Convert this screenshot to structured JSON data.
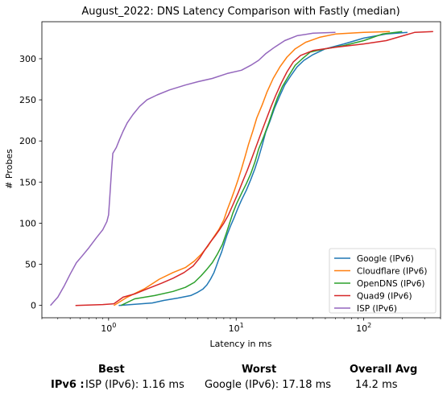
{
  "chart_data": {
    "type": "line",
    "title": "August_2022: DNS Latency Comparison with Fastly (median)",
    "xlabel": "Latency in ms",
    "ylabel": "# Probes",
    "xscale": "log",
    "xlim": [
      0.3,
      400
    ],
    "ylim": [
      -15,
      345
    ],
    "xticks": [
      1,
      10,
      100
    ],
    "xtick_labels": [
      "10^0",
      "10^1",
      "10^2"
    ],
    "yticks": [
      0,
      50,
      100,
      150,
      200,
      250,
      300
    ],
    "grid": false,
    "legend_position": "lower right",
    "series": [
      {
        "name": "Google (IPv6)",
        "color": "#1f77b4",
        "points": [
          [
            1.2,
            0
          ],
          [
            2.2,
            3
          ],
          [
            2.7,
            6
          ],
          [
            3.5,
            9
          ],
          [
            4.4,
            12
          ],
          [
            5.0,
            16
          ],
          [
            5.5,
            20
          ],
          [
            5.9,
            25
          ],
          [
            6.3,
            32
          ],
          [
            6.7,
            40
          ],
          [
            7.0,
            48
          ],
          [
            7.3,
            56
          ],
          [
            7.7,
            65
          ],
          [
            8.1,
            76
          ],
          [
            8.5,
            86
          ],
          [
            9.0,
            96
          ],
          [
            9.6,
            106
          ],
          [
            10.3,
            118
          ],
          [
            11,
            128
          ],
          [
            12,
            140
          ],
          [
            13,
            153
          ],
          [
            14,
            166
          ],
          [
            15,
            180
          ],
          [
            16,
            195
          ],
          [
            17,
            210
          ],
          [
            18.5,
            225
          ],
          [
            20,
            240
          ],
          [
            22,
            255
          ],
          [
            24,
            268
          ],
          [
            27,
            280
          ],
          [
            30,
            290
          ],
          [
            34,
            298
          ],
          [
            40,
            305
          ],
          [
            50,
            312
          ],
          [
            70,
            318
          ],
          [
            100,
            325
          ],
          [
            150,
            330
          ],
          [
            220,
            332
          ]
        ]
      },
      {
        "name": "Cloudflare (IPv6)",
        "color": "#ff7f0e",
        "points": [
          [
            1.1,
            0
          ],
          [
            1.4,
            10
          ],
          [
            1.9,
            20
          ],
          [
            2.5,
            32
          ],
          [
            3.2,
            40
          ],
          [
            4.0,
            46
          ],
          [
            4.7,
            54
          ],
          [
            5.3,
            62
          ],
          [
            6.0,
            72
          ],
          [
            6.6,
            82
          ],
          [
            7.3,
            92
          ],
          [
            8.0,
            104
          ],
          [
            8.5,
            116
          ],
          [
            9.1,
            128
          ],
          [
            9.7,
            140
          ],
          [
            10.3,
            152
          ],
          [
            11,
            166
          ],
          [
            11.7,
            180
          ],
          [
            12.5,
            196
          ],
          [
            13.5,
            212
          ],
          [
            14.5,
            228
          ],
          [
            16,
            244
          ],
          [
            17.5,
            260
          ],
          [
            19.5,
            276
          ],
          [
            22,
            290
          ],
          [
            25,
            302
          ],
          [
            29,
            312
          ],
          [
            35,
            320
          ],
          [
            45,
            326
          ],
          [
            60,
            330
          ],
          [
            100,
            332
          ],
          [
            160,
            333
          ]
        ]
      },
      {
        "name": "OpenDNS (IPv6)",
        "color": "#2ca02c",
        "points": [
          [
            1.25,
            0
          ],
          [
            1.6,
            8
          ],
          [
            2.3,
            12
          ],
          [
            3.2,
            17
          ],
          [
            4.0,
            22
          ],
          [
            4.7,
            28
          ],
          [
            5.3,
            36
          ],
          [
            5.9,
            44
          ],
          [
            6.5,
            52
          ],
          [
            7.1,
            62
          ],
          [
            7.8,
            74
          ],
          [
            8.3,
            86
          ],
          [
            8.8,
            98
          ],
          [
            9.4,
            112
          ],
          [
            10.1,
            124
          ],
          [
            11,
            136
          ],
          [
            12,
            148
          ],
          [
            13,
            160
          ],
          [
            14,
            174
          ],
          [
            15,
            190
          ],
          [
            16.5,
            206
          ],
          [
            18,
            222
          ],
          [
            19.5,
            238
          ],
          [
            21,
            252
          ],
          [
            23,
            266
          ],
          [
            26,
            280
          ],
          [
            29,
            292
          ],
          [
            33,
            300
          ],
          [
            38,
            308
          ],
          [
            50,
            312
          ],
          [
            70,
            316
          ],
          [
            100,
            322
          ],
          [
            140,
            330
          ],
          [
            200,
            333
          ]
        ]
      },
      {
        "name": "Quad9 (IPv6)",
        "color": "#d62728",
        "points": [
          [
            0.55,
            0
          ],
          [
            0.9,
            1
          ],
          [
            1.1,
            2
          ],
          [
            1.3,
            10
          ],
          [
            1.6,
            14
          ],
          [
            2.0,
            20
          ],
          [
            2.6,
            27
          ],
          [
            3.2,
            33
          ],
          [
            3.9,
            40
          ],
          [
            4.6,
            48
          ],
          [
            5.2,
            58
          ],
          [
            5.7,
            68
          ],
          [
            6.2,
            76
          ],
          [
            6.8,
            84
          ],
          [
            7.4,
            92
          ],
          [
            8.0,
            100
          ],
          [
            8.7,
            110
          ],
          [
            9.4,
            122
          ],
          [
            10.3,
            136
          ],
          [
            11.2,
            150
          ],
          [
            12.2,
            164
          ],
          [
            13.2,
            178
          ],
          [
            14.4,
            194
          ],
          [
            15.7,
            210
          ],
          [
            17.2,
            226
          ],
          [
            18.8,
            242
          ],
          [
            20.5,
            256
          ],
          [
            22.5,
            270
          ],
          [
            25,
            284
          ],
          [
            28,
            296
          ],
          [
            32,
            304
          ],
          [
            40,
            310
          ],
          [
            60,
            314
          ],
          [
            100,
            318
          ],
          [
            150,
            322
          ],
          [
            250,
            332
          ],
          [
            350,
            333
          ]
        ]
      },
      {
        "name": "ISP (IPv6)",
        "color": "#9467bd",
        "points": [
          [
            0.35,
            0
          ],
          [
            0.4,
            10
          ],
          [
            0.45,
            24
          ],
          [
            0.5,
            38
          ],
          [
            0.56,
            52
          ],
          [
            0.62,
            60
          ],
          [
            0.7,
            70
          ],
          [
            0.8,
            82
          ],
          [
            0.9,
            92
          ],
          [
            0.97,
            102
          ],
          [
            1.0,
            110
          ],
          [
            1.02,
            130
          ],
          [
            1.05,
            160
          ],
          [
            1.08,
            185
          ],
          [
            1.15,
            192
          ],
          [
            1.22,
            202
          ],
          [
            1.3,
            212
          ],
          [
            1.4,
            222
          ],
          [
            1.55,
            232
          ],
          [
            1.75,
            242
          ],
          [
            2.0,
            250
          ],
          [
            2.4,
            256
          ],
          [
            3.0,
            262
          ],
          [
            4.0,
            268
          ],
          [
            5.0,
            272
          ],
          [
            6.5,
            276
          ],
          [
            8.5,
            282
          ],
          [
            11,
            286
          ],
          [
            13,
            292
          ],
          [
            15,
            298
          ],
          [
            17,
            306
          ],
          [
            20,
            314
          ],
          [
            24,
            322
          ],
          [
            30,
            328
          ],
          [
            40,
            331
          ],
          [
            60,
            332
          ]
        ]
      }
    ]
  },
  "summary": {
    "headers": {
      "best": "Best",
      "worst": "Worst",
      "avg": "Overall Avg"
    },
    "row_label": "IPv6 :",
    "best": "ISP (IPv6): 1.16 ms",
    "worst": "Google (IPv6): 17.18 ms",
    "avg": "14.2 ms"
  }
}
